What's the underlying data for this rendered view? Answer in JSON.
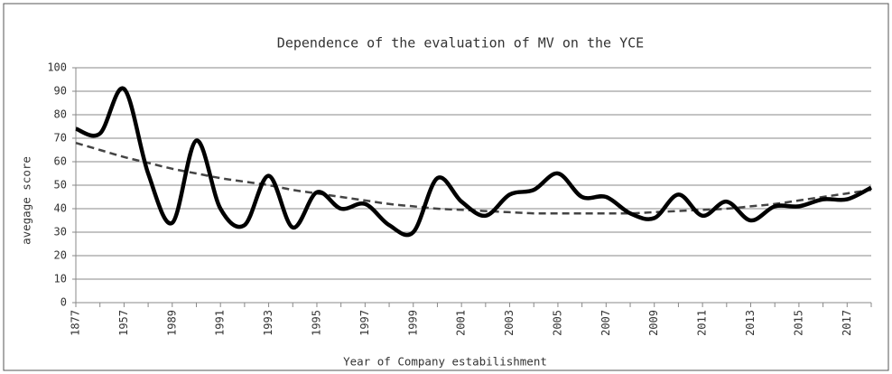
{
  "chart_data": {
    "type": "line",
    "title": "Dependence of the evaluation of MV on the YCE",
    "x_label": "Year of Company estabilishment",
    "y_label": "avegage score",
    "categories": [
      "1877",
      null,
      "1957",
      null,
      "1989",
      null,
      "1991",
      null,
      "1993",
      null,
      "1995",
      null,
      "1997",
      null,
      "1999",
      null,
      "2001",
      null,
      "2003",
      null,
      "2005",
      null,
      "2007",
      null,
      "2009",
      null,
      "2011",
      null,
      "2013",
      null,
      "2015",
      null,
      "2017",
      null
    ],
    "series": [
      {
        "color": "#000000",
        "style": "solid",
        "values": [
          74,
          72,
          91,
          55,
          34,
          69,
          40,
          33,
          54,
          32,
          47,
          40,
          42,
          33,
          30,
          53,
          43,
          37,
          46,
          48,
          55,
          45,
          45,
          38,
          36,
          46,
          37,
          43,
          35,
          41,
          41,
          44,
          44,
          49
        ]
      },
      {
        "color": "#444444",
        "style": "dashed",
        "values": [
          68,
          65,
          62,
          59.5,
          57,
          55,
          53,
          51.5,
          50,
          48,
          46.5,
          45,
          43.5,
          42,
          41,
          40,
          39.5,
          39,
          38.5,
          38,
          38,
          38,
          38,
          38,
          38.5,
          39,
          39.5,
          40,
          41,
          42,
          43.5,
          45,
          46.5,
          48
        ]
      }
    ],
    "ylim": [
      0,
      100
    ],
    "yticks": [
      0,
      10,
      20,
      30,
      40,
      50,
      60,
      70,
      80,
      90,
      100
    ],
    "grid": true
  }
}
